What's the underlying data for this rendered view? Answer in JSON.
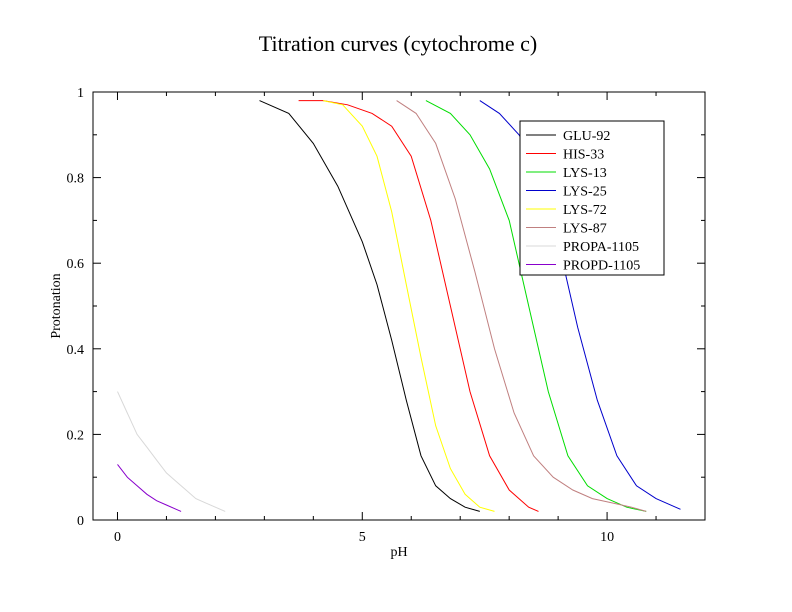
{
  "chart_data": {
    "type": "line",
    "title": "Titration curves (cytochrome c)",
    "xlabel": "pH",
    "ylabel": "Protonation",
    "xlim": [
      -0.5,
      12.0
    ],
    "ylim": [
      0,
      1
    ],
    "x_ticks": [
      0,
      5,
      10
    ],
    "x_tick_labels": [
      "0",
      "5",
      "10"
    ],
    "y_ticks": [
      0,
      0.2,
      0.4,
      0.6,
      0.8,
      1
    ],
    "y_tick_labels": [
      "0",
      "0.2",
      "0.4",
      "0.6",
      "0.8",
      "1"
    ],
    "grid": false,
    "legend_position": "top-right",
    "series": [
      {
        "name": "GLU-92",
        "color": "#000000",
        "x": [
          2.9,
          3.5,
          4.0,
          4.5,
          5.0,
          5.3,
          5.6,
          5.9,
          6.2,
          6.5,
          6.8,
          7.1,
          7.4
        ],
        "y": [
          0.98,
          0.95,
          0.88,
          0.78,
          0.65,
          0.55,
          0.42,
          0.28,
          0.15,
          0.08,
          0.05,
          0.03,
          0.02
        ]
      },
      {
        "name": "HIS-33",
        "color": "#ff0000",
        "x": [
          3.7,
          4.2,
          4.7,
          5.2,
          5.6,
          6.0,
          6.4,
          6.8,
          7.2,
          7.6,
          8.0,
          8.4,
          8.6
        ],
        "y": [
          0.98,
          0.98,
          0.97,
          0.95,
          0.92,
          0.85,
          0.7,
          0.5,
          0.3,
          0.15,
          0.07,
          0.03,
          0.02
        ]
      },
      {
        "name": "LYS-13",
        "color": "#00dd00",
        "x": [
          6.3,
          6.8,
          7.2,
          7.6,
          8.0,
          8.4,
          8.8,
          9.2,
          9.6,
          10.0,
          10.4,
          10.8
        ],
        "y": [
          0.98,
          0.95,
          0.9,
          0.82,
          0.7,
          0.5,
          0.3,
          0.15,
          0.08,
          0.05,
          0.03,
          0.02
        ]
      },
      {
        "name": "LYS-25",
        "color": "#0000cc",
        "x": [
          7.4,
          7.8,
          8.2,
          8.6,
          9.0,
          9.4,
          9.8,
          10.2,
          10.6,
          11.0,
          11.4,
          11.5
        ],
        "y": [
          0.98,
          0.95,
          0.9,
          0.82,
          0.65,
          0.45,
          0.28,
          0.15,
          0.08,
          0.05,
          0.03,
          0.025
        ]
      },
      {
        "name": "LYS-72",
        "color": "#ffff00",
        "x": [
          4.2,
          4.6,
          5.0,
          5.3,
          5.6,
          5.9,
          6.2,
          6.5,
          6.8,
          7.1,
          7.4,
          7.7
        ],
        "y": [
          0.98,
          0.97,
          0.92,
          0.85,
          0.72,
          0.55,
          0.38,
          0.22,
          0.12,
          0.06,
          0.03,
          0.02
        ]
      },
      {
        "name": "LYS-87",
        "color": "#c08080",
        "x": [
          5.7,
          6.1,
          6.5,
          6.9,
          7.3,
          7.7,
          8.1,
          8.5,
          8.9,
          9.3,
          9.7,
          10.1,
          10.5,
          10.8
        ],
        "y": [
          0.98,
          0.95,
          0.88,
          0.75,
          0.58,
          0.4,
          0.25,
          0.15,
          0.1,
          0.07,
          0.05,
          0.04,
          0.03,
          0.02
        ]
      },
      {
        "name": "PROPA-1105",
        "color": "#d8d8d8",
        "x": [
          0.0,
          0.2,
          0.4,
          0.6,
          0.8,
          1.0,
          1.2,
          1.4,
          1.6,
          1.8,
          2.0,
          2.2
        ],
        "y": [
          0.3,
          0.25,
          0.2,
          0.17,
          0.14,
          0.11,
          0.09,
          0.07,
          0.05,
          0.04,
          0.03,
          0.02
        ]
      },
      {
        "name": "PROPD-1105",
        "color": "#8800cc",
        "x": [
          0.0,
          0.2,
          0.4,
          0.6,
          0.8,
          1.0,
          1.2,
          1.3
        ],
        "y": [
          0.13,
          0.1,
          0.08,
          0.06,
          0.045,
          0.035,
          0.025,
          0.02
        ]
      }
    ]
  }
}
